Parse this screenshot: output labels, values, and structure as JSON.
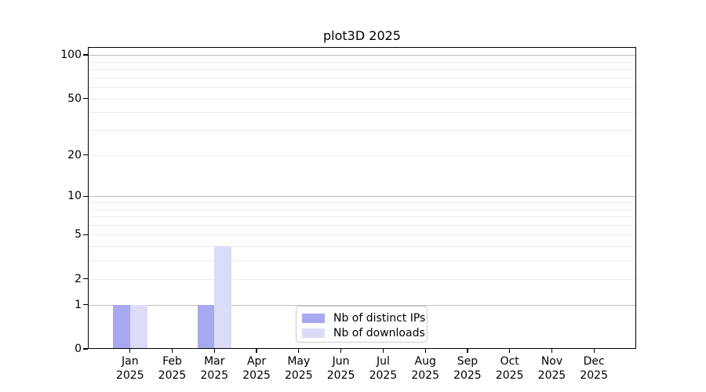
{
  "chart_data": {
    "type": "bar",
    "title": "plot3D 2025",
    "categories": [
      "Jan",
      "Feb",
      "Mar",
      "Apr",
      "May",
      "Jun",
      "Jul",
      "Aug",
      "Sep",
      "Oct",
      "Nov",
      "Dec"
    ],
    "category_year": "2025",
    "series": [
      {
        "name": "Nb of distinct IPs",
        "color": "#a8a8f0",
        "values": [
          1,
          0,
          1,
          0,
          0,
          0,
          0,
          0,
          0,
          0,
          0,
          0
        ]
      },
      {
        "name": "Nb of downloads",
        "color": "#dcdcf8",
        "values": [
          1,
          0,
          4,
          0,
          0,
          0,
          0,
          0,
          0,
          0,
          0,
          0
        ]
      }
    ],
    "ylabel": "",
    "xlabel": "",
    "ylim": [
      0,
      100
    ],
    "y_scale": "log1p",
    "yticks": [
      0,
      1,
      2,
      5,
      10,
      20,
      50,
      100
    ],
    "major_gridlines": [
      1,
      10,
      100
    ],
    "minor_gridlines": [
      2,
      3,
      4,
      5,
      6,
      7,
      8,
      9,
      20,
      30,
      40,
      50,
      60,
      70,
      80,
      90
    ],
    "grid": true,
    "legend_position": "lower center",
    "colors": {
      "major_grid": "#bfbfbf",
      "minor_grid": "#ececec",
      "axis": "#000000",
      "text": "#000000",
      "legend_border": "#cccccc",
      "background": "#ffffff"
    }
  }
}
